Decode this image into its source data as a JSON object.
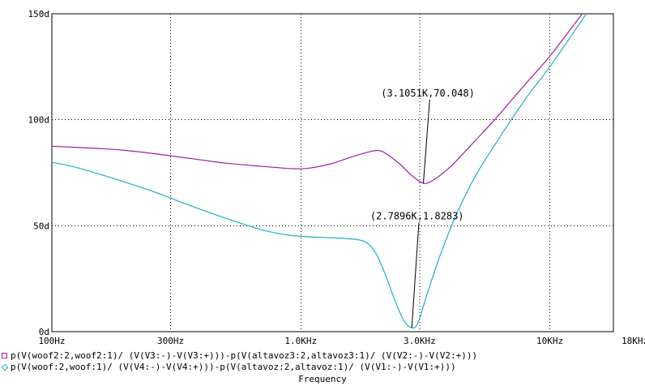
{
  "chart_data": {
    "type": "line",
    "x_scale": "log",
    "xlabel": "Frequency",
    "xlim": [
      100,
      18000
    ],
    "ylim": [
      0,
      150
    ],
    "x_ticks": [
      {
        "value": 100,
        "label": "100Hz"
      },
      {
        "value": 300,
        "label": "300Hz"
      },
      {
        "value": 1000,
        "label": "1.0KHz"
      },
      {
        "value": 3000,
        "label": "3.0KHz"
      },
      {
        "value": 10000,
        "label": "10KHz"
      },
      {
        "value": 18000,
        "label": "18KHz"
      }
    ],
    "y_ticks": [
      {
        "value": 0,
        "label": "0d"
      },
      {
        "value": 50,
        "label": "50d"
      },
      {
        "value": 100,
        "label": "100d"
      },
      {
        "value": 150,
        "label": "150d"
      }
    ],
    "grid": true,
    "series": [
      {
        "name": "p(V(woof2:2,woof2:1)/ (V(V3:-)-V(V3:+)))-p(V(altavoz3:2,altavoz3:1)/ (V(V2:-)-V(V2:+)))",
        "color": "#a020a0",
        "marker": "square",
        "points": [
          [
            100,
            87.5
          ],
          [
            150,
            86.5
          ],
          [
            200,
            85.5
          ],
          [
            300,
            83
          ],
          [
            400,
            81
          ],
          [
            500,
            79.5
          ],
          [
            700,
            78
          ],
          [
            900,
            77
          ],
          [
            1050,
            77
          ],
          [
            1300,
            79
          ],
          [
            1600,
            82.5
          ],
          [
            1900,
            85
          ],
          [
            2050,
            85.5
          ],
          [
            2200,
            84
          ],
          [
            2500,
            79
          ],
          [
            2800,
            73.5
          ],
          [
            3105,
            70.048
          ],
          [
            3400,
            71.5
          ],
          [
            4000,
            78
          ],
          [
            5000,
            90
          ],
          [
            6000,
            100
          ],
          [
            8000,
            117
          ],
          [
            10000,
            130
          ],
          [
            13500,
            150
          ]
        ]
      },
      {
        "name": "p(V(woof:2,woof:1)/ (V(V4:-)-V(V4:+)))-p(V(altavoz:2,altavoz:1)/ (V(V1:-)-V(V1:+)))",
        "color": "#20b0c0",
        "marker": "diamond",
        "points": [
          [
            100,
            80
          ],
          [
            130,
            77
          ],
          [
            180,
            72
          ],
          [
            250,
            66.5
          ],
          [
            350,
            60
          ],
          [
            500,
            53.5
          ],
          [
            700,
            48
          ],
          [
            900,
            45.5
          ],
          [
            1200,
            44.5
          ],
          [
            1500,
            44
          ],
          [
            1800,
            42.5
          ],
          [
            2000,
            37
          ],
          [
            2200,
            26
          ],
          [
            2400,
            14
          ],
          [
            2600,
            5
          ],
          [
            2790,
            1.8283
          ],
          [
            2950,
            4
          ],
          [
            3200,
            17
          ],
          [
            3600,
            35
          ],
          [
            4200,
            55
          ],
          [
            5000,
            73
          ],
          [
            6000,
            88
          ],
          [
            8000,
            110
          ],
          [
            10000,
            125
          ],
          [
            14000,
            150
          ]
        ]
      }
    ],
    "annotations": [
      {
        "text": "(3.1051K,70.048)",
        "x": 3105.1,
        "y": 70.048,
        "label_x": 2100,
        "label_y": 111
      },
      {
        "text": "(2.7896K,1.8283)",
        "x": 2789.6,
        "y": 1.8283,
        "label_x": 1900,
        "label_y": 53
      }
    ]
  }
}
